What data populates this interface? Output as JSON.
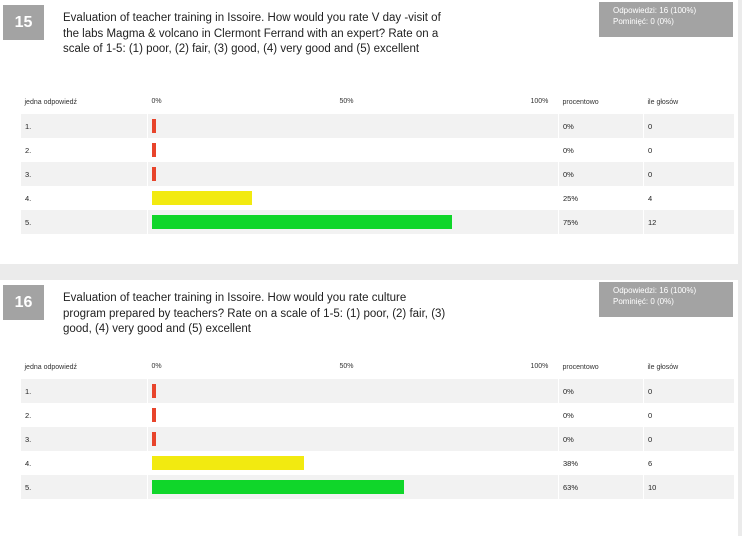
{
  "headers": {
    "answer": "jedna odpowiedź",
    "scale": [
      "0%",
      "50%",
      "100%"
    ],
    "percent": "procentowo",
    "votes": "ile głosów"
  },
  "colors": {
    "low": "#e8442b",
    "mid": "#f2ea10",
    "high": "#10d62a",
    "badge": "#a3a3a3"
  },
  "questions": [
    {
      "number": "15",
      "text": "Evaluation of teacher training in Issoire. How would you rate V day -visit of the labs Magma & volcano  in Clermont Ferrand with an expert? Rate on a scale of 1-5: (1) poor, (2) fair, (3) good, (4) very good and (5) excellent",
      "stats_line1": "Odpowiedzi: 16 (100%)",
      "stats_line2": "Pominięć: 0 (0%)",
      "rows": [
        {
          "label": "1.",
          "percent": "0%",
          "votes": "0"
        },
        {
          "label": "2.",
          "percent": "0%",
          "votes": "0"
        },
        {
          "label": "3.",
          "percent": "0%",
          "votes": "0"
        },
        {
          "label": "4.",
          "percent": "25%",
          "votes": "4"
        },
        {
          "label": "5.",
          "percent": "75%",
          "votes": "12"
        }
      ]
    },
    {
      "number": "16",
      "text": "Evaluation of teacher training in Issoire. How would you rate culture program prepared by teachers? Rate on a scale of 1-5: (1) poor, (2) fair, (3) good, (4) very good and (5) excellent",
      "stats_line1": "Odpowiedzi: 16 (100%)",
      "stats_line2": "Pominięć: 0 (0%)",
      "rows": [
        {
          "label": "1.",
          "percent": "0%",
          "votes": "0"
        },
        {
          "label": "2.",
          "percent": "0%",
          "votes": "0"
        },
        {
          "label": "3.",
          "percent": "0%",
          "votes": "0"
        },
        {
          "label": "4.",
          "percent": "38%",
          "votes": "6"
        },
        {
          "label": "5.",
          "percent": "63%",
          "votes": "10"
        }
      ]
    }
  ],
  "chart_data": [
    {
      "type": "bar",
      "orientation": "horizontal",
      "categories": [
        "1.",
        "2.",
        "3.",
        "4.",
        "5."
      ],
      "values": [
        0,
        0,
        0,
        25,
        75
      ],
      "counts": [
        0,
        0,
        0,
        4,
        12
      ],
      "xlim": [
        0,
        100
      ]
    },
    {
      "type": "bar",
      "orientation": "horizontal",
      "categories": [
        "1.",
        "2.",
        "3.",
        "4.",
        "5."
      ],
      "values": [
        0,
        0,
        0,
        38,
        63
      ],
      "counts": [
        0,
        0,
        0,
        6,
        10
      ],
      "xlim": [
        0,
        100
      ]
    }
  ]
}
